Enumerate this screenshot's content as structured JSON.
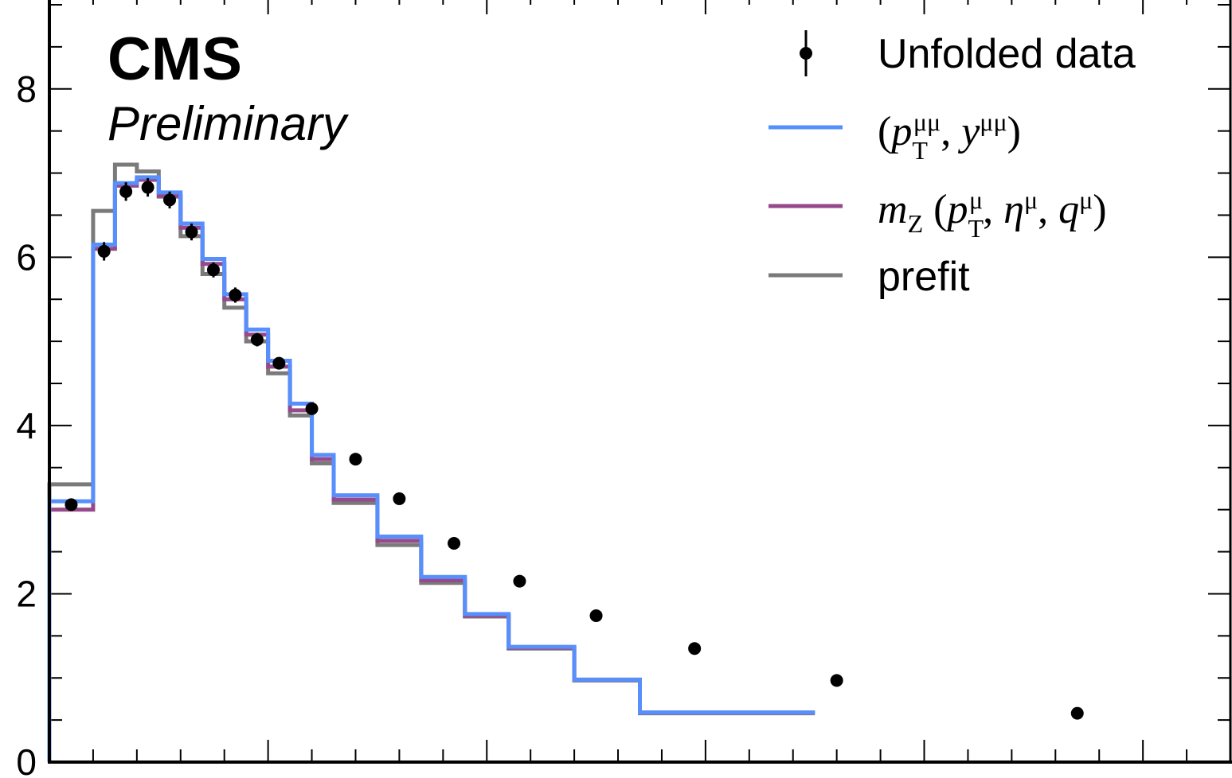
{
  "header": {
    "experiment": "CMS",
    "status": "Preliminary"
  },
  "legend": [
    {
      "label": "Unfolded data",
      "style": "marker",
      "color": "#000000"
    },
    {
      "label": "(p_T^μμ, y^μμ)",
      "style": "line",
      "color": "#5790fc"
    },
    {
      "label": "m_Z (p_T^μ, η^μ, q^μ)",
      "style": "line",
      "color": "#964a8b"
    },
    {
      "label": "prefit",
      "style": "line",
      "color": "#7a7a7a"
    }
  ],
  "chart_data": {
    "type": "line",
    "x_edges": [
      0,
      2,
      3,
      4,
      5,
      6,
      7,
      8,
      9,
      10,
      11,
      12,
      13,
      15,
      17,
      19,
      21,
      24,
      27,
      30,
      35,
      40,
      48,
      54
    ],
    "xlim": [
      0,
      54
    ],
    "ylim": [
      0,
      9
    ],
    "yticks": [
      0,
      2,
      4,
      6,
      8
    ],
    "legend_position": "top-right",
    "series": [
      {
        "name": "Unfolded data",
        "kind": "points",
        "color": "#000000",
        "values": [
          3.06,
          6.07,
          6.78,
          6.83,
          6.68,
          6.3,
          5.85,
          5.55,
          5.02,
          4.74,
          4.2,
          3.6,
          3.13,
          2.6,
          2.15,
          1.74,
          1.35,
          0.97,
          0.58
        ],
        "x_centers": [
          1,
          2.5,
          3.5,
          4.5,
          5.5,
          6.5,
          7.5,
          8.5,
          9.5,
          10.5,
          12,
          14,
          16,
          18.5,
          21.5,
          25,
          29.5,
          36,
          47
        ],
        "errors": [
          0.05,
          0.11,
          0.11,
          0.11,
          0.1,
          0.1,
          0.09,
          0.09,
          0.08,
          0.07,
          0.06,
          0.05,
          0.05,
          0.04,
          0.03,
          0.03,
          0.03,
          0.02,
          0.02
        ]
      },
      {
        "name": "prefit",
        "kind": "step",
        "color": "#7a7a7a",
        "values": [
          3.3,
          6.55,
          7.1,
          7.02,
          6.72,
          6.25,
          5.8,
          5.4,
          5.0,
          4.62,
          4.12,
          3.55,
          3.08,
          2.58,
          2.13,
          1.73,
          1.35,
          0.97,
          0.58,
          0.58
        ]
      },
      {
        "name": "m_Z (p_T^μ, η^μ, q^μ)",
        "kind": "step",
        "color": "#964a8b",
        "values": [
          3.0,
          6.1,
          6.85,
          6.92,
          6.73,
          6.35,
          5.92,
          5.5,
          5.08,
          4.7,
          4.18,
          3.6,
          3.12,
          2.63,
          2.16,
          1.74,
          1.36,
          0.98,
          0.59,
          0.59
        ]
      },
      {
        "name": "(p_T^μμ, y^μμ)",
        "kind": "step",
        "color": "#5790fc",
        "values": [
          3.1,
          6.15,
          6.88,
          6.95,
          6.77,
          6.4,
          5.98,
          5.56,
          5.14,
          4.77,
          4.26,
          3.65,
          3.17,
          2.68,
          2.2,
          1.76,
          1.37,
          0.98,
          0.59,
          0.59
        ]
      }
    ]
  }
}
